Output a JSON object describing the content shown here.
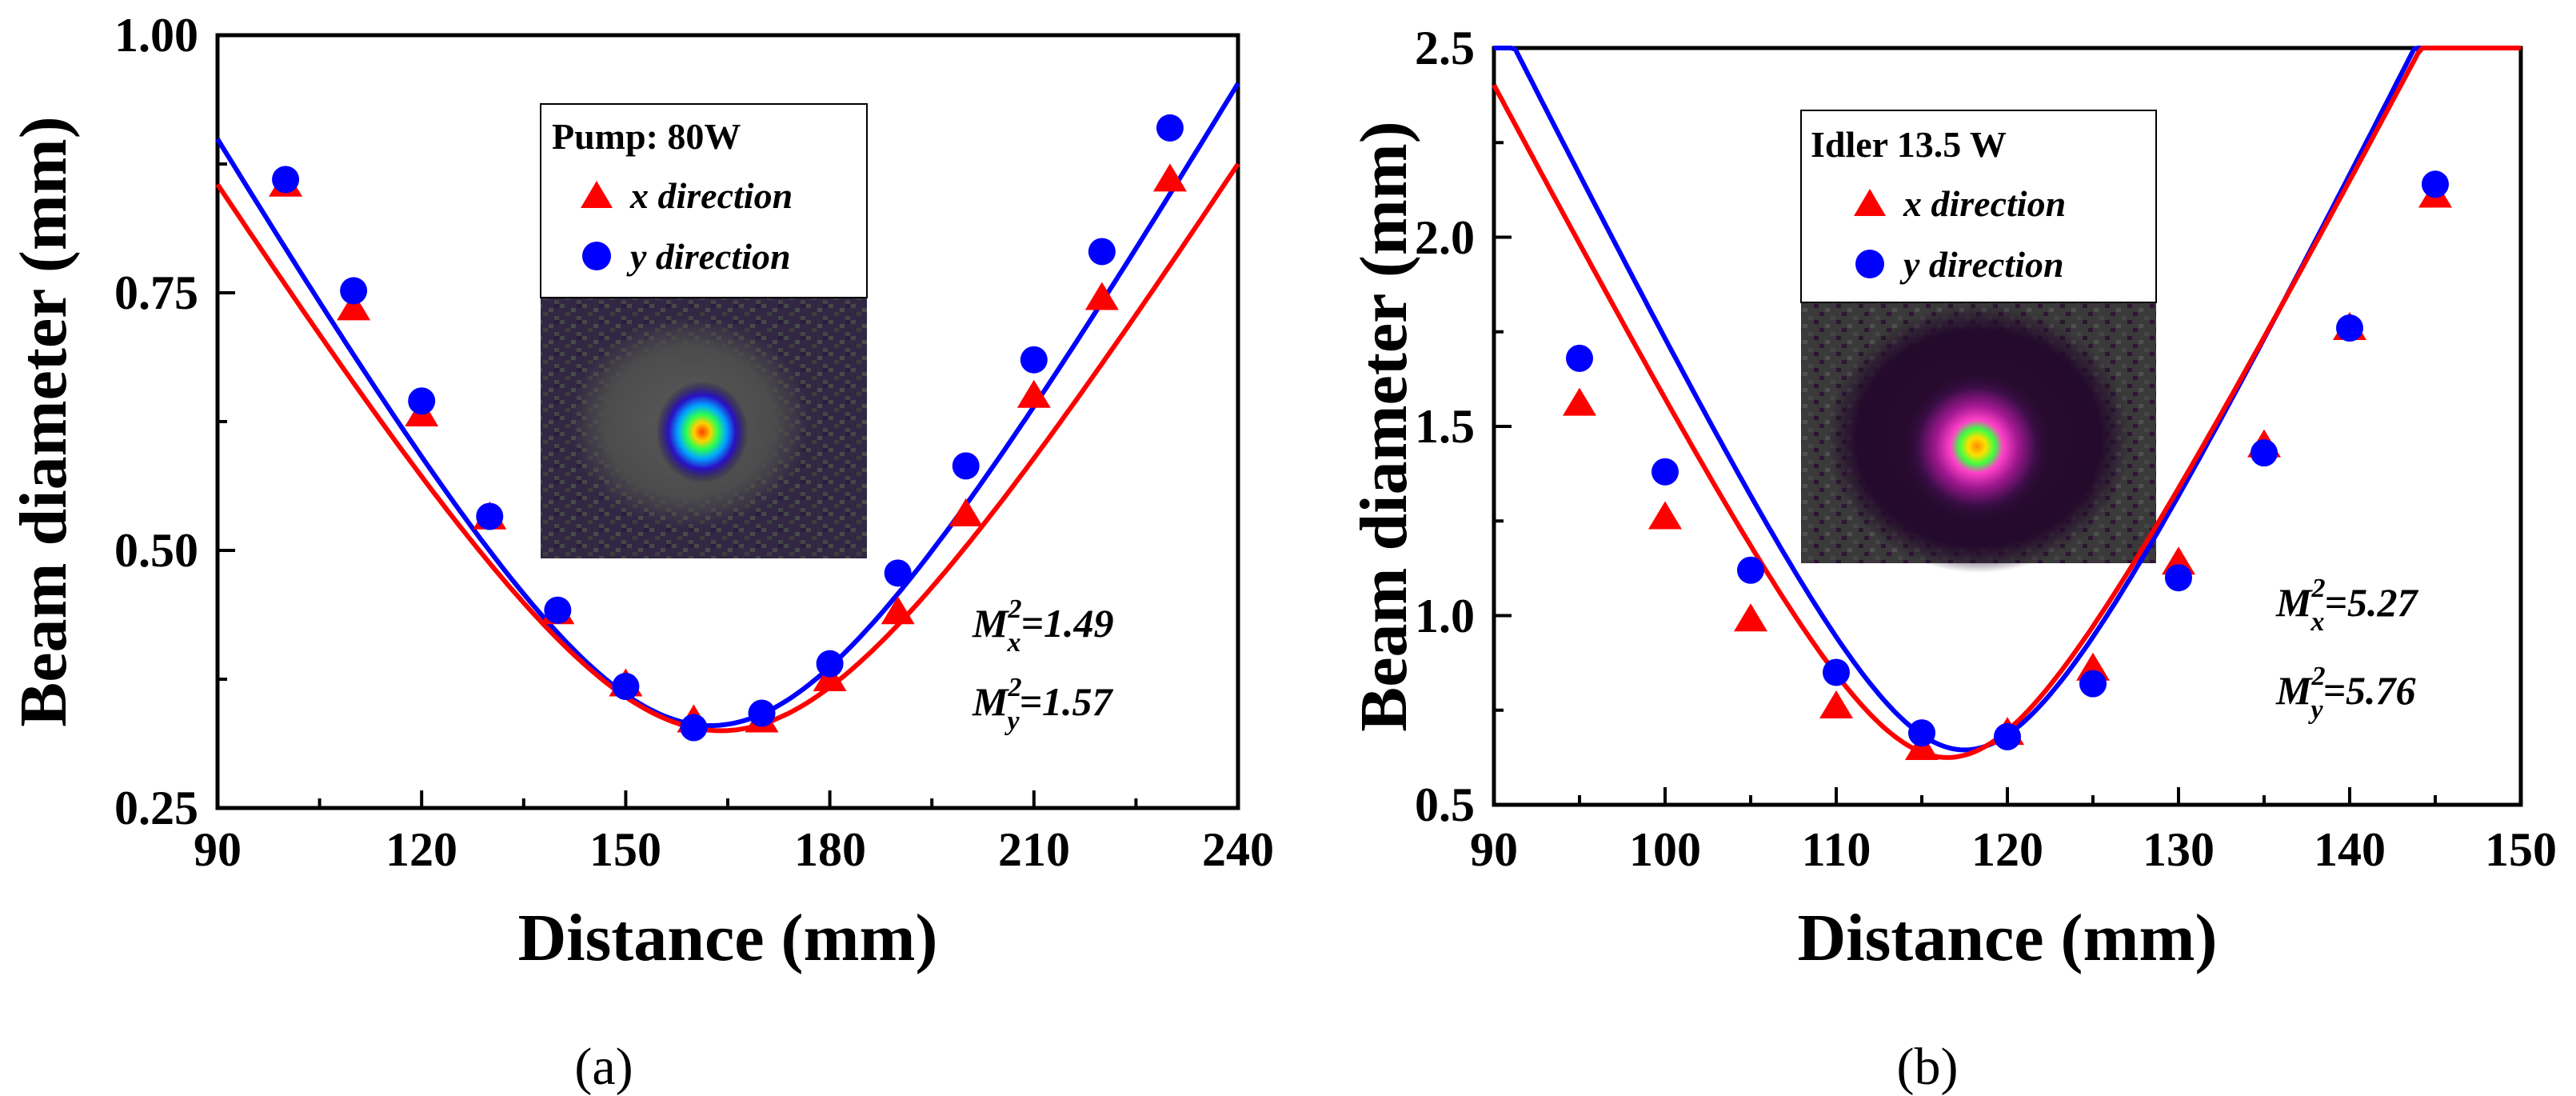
{
  "chart_data": [
    {
      "type": "scatter",
      "panel_label": "(a)",
      "xlabel": "Distance (mm)",
      "ylabel": "Beam diameter (mm)",
      "xlim": [
        90,
        240
      ],
      "ylim": [
        0.25,
        1.0
      ],
      "xticks": [
        "90",
        "120",
        "150",
        "180",
        "210",
        "240"
      ],
      "yticks": [
        "0.25",
        "0.50",
        "0.75",
        "1.00"
      ],
      "legend": {
        "title": "Pump: 80W",
        "entries": [
          "x direction",
          "y direction"
        ],
        "placement": "top-center"
      },
      "annotations": [
        {
          "base": "M",
          "sup": "2",
          "sub": "x",
          "value": "=1.49"
        },
        {
          "base": "M",
          "sup": "2",
          "sub": "y",
          "value": "=1.57"
        }
      ],
      "fit": {
        "x": {
          "d0": 0.325,
          "z0": 164,
          "zr": 30.4
        },
        "y": {
          "d0": 0.33,
          "z0": 162.5,
          "zr": 28.6
        }
      },
      "series": [
        {
          "name": "x direction",
          "marker": "triangle",
          "color": "#ff0000",
          "x": [
            100,
            110,
            120,
            130,
            140,
            150,
            160,
            170,
            180,
            190,
            200,
            210,
            220,
            230
          ],
          "y": [
            0.855,
            0.735,
            0.632,
            0.532,
            0.44,
            0.37,
            0.335,
            0.335,
            0.375,
            0.44,
            0.535,
            0.65,
            0.745,
            0.86
          ]
        },
        {
          "name": "y direction",
          "marker": "circle",
          "color": "#0000ff",
          "x": [
            100,
            110,
            120,
            130,
            140,
            150,
            160,
            170,
            180,
            190,
            200,
            210,
            220,
            230
          ],
          "y": [
            0.86,
            0.752,
            0.645,
            0.533,
            0.442,
            0.368,
            0.328,
            0.342,
            0.39,
            0.478,
            0.582,
            0.685,
            0.79,
            0.91
          ]
        }
      ]
    },
    {
      "type": "scatter",
      "panel_label": "(b)",
      "xlabel": "Distance (mm)",
      "ylabel": "Beam diameter (mm)",
      "xlim": [
        90,
        150
      ],
      "ylim": [
        0.5,
        2.5
      ],
      "xticks": [
        "90",
        "100",
        "110",
        "120",
        "130",
        "140",
        "150"
      ],
      "yticks": [
        "0.5",
        "1.0",
        "1.5",
        "2.0",
        "2.5"
      ],
      "legend": {
        "title": "Idler 13.5 W",
        "entries": [
          "x direction",
          "y direction"
        ],
        "placement": "top-center"
      },
      "annotations": [
        {
          "base": "M",
          "sup": "2",
          "sub": "x",
          "value": "=5.27"
        },
        {
          "base": "M",
          "sup": "2",
          "sub": "y",
          "value": "=5.76"
        }
      ],
      "fit": {
        "x": {
          "d0": 0.625,
          "z0": 116.5,
          "zr": 7.14
        },
        "y": {
          "d0": 0.645,
          "z0": 117.5,
          "zr": 7.02
        }
      },
      "series": [
        {
          "name": "x direction",
          "marker": "triangle",
          "color": "#ff0000",
          "x": [
            95,
            100,
            105,
            110,
            115,
            120,
            125,
            130,
            135,
            140,
            145
          ],
          "y": [
            1.56,
            1.26,
            0.99,
            0.76,
            0.65,
            0.69,
            0.86,
            1.14,
            1.45,
            1.76,
            2.11
          ]
        },
        {
          "name": "y direction",
          "marker": "circle",
          "color": "#0000ff",
          "x": [
            95,
            100,
            105,
            110,
            115,
            120,
            125,
            130,
            135,
            140,
            145
          ],
          "y": [
            1.68,
            1.38,
            1.12,
            0.85,
            0.69,
            0.68,
            0.82,
            1.1,
            1.43,
            1.76,
            2.14
          ]
        }
      ]
    }
  ]
}
